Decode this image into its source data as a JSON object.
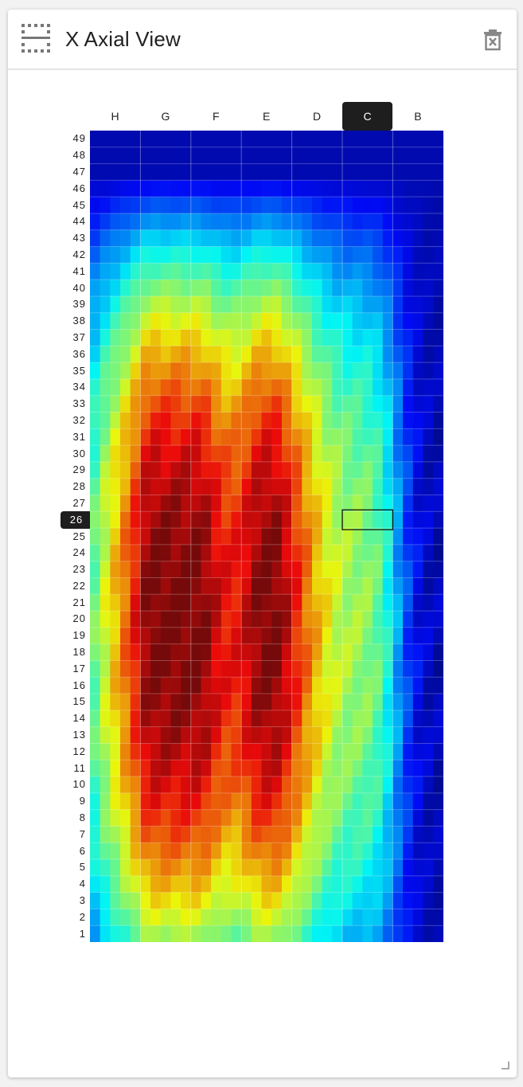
{
  "panel": {
    "title": "X Axial View",
    "icons": {
      "layout": "grid-dashed-icon",
      "close": "delete-box-icon"
    }
  },
  "heatmap": {
    "columns": [
      "H",
      "G",
      "F",
      "E",
      "D",
      "C",
      "B"
    ],
    "rows": [
      "49",
      "48",
      "47",
      "46",
      "45",
      "44",
      "43",
      "42",
      "41",
      "40",
      "39",
      "38",
      "37",
      "36",
      "35",
      "34",
      "33",
      "32",
      "31",
      "30",
      "29",
      "28",
      "27",
      "26",
      "25",
      "24",
      "23",
      "22",
      "21",
      "20",
      "19",
      "18",
      "17",
      "16",
      "15",
      "14",
      "13",
      "12",
      "11",
      "10",
      "9",
      "8",
      "7",
      "6",
      "5",
      "4",
      "3",
      "2",
      "1"
    ],
    "selected_column": "C",
    "selected_row": "26",
    "colormap": "jet",
    "colors": {
      "selected_bg": "#1e1e1e",
      "selected_text": "#ffffff",
      "highlight_border": "#111111"
    }
  }
}
